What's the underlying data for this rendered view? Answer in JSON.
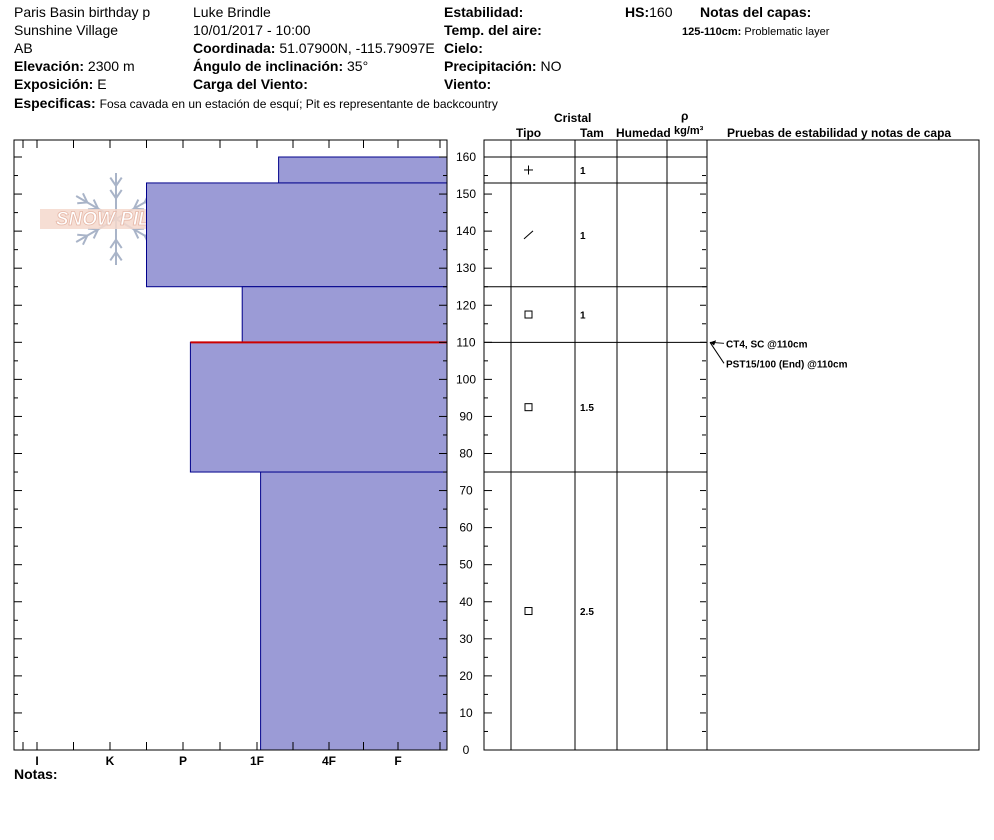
{
  "header": {
    "location": "Paris Basin birthday p",
    "area": "Sunshine Village",
    "province": "AB",
    "elevation_label": "Elevación:",
    "elevation_value": "2300 m",
    "aspect_label": "Exposición:",
    "aspect_value": "E",
    "specifics_label": "Especificas:",
    "specifics_value": "Fosa cavada en un estación de esquí; Pit es representante de backcountry",
    "observer": "Luke Brindle",
    "datetime": "10/01/2017 - 10:00",
    "coord_label": "Coordinada:",
    "coord_value": "51.07900N, -115.79097E",
    "slope_label": "Ángulo de inclinación:",
    "slope_value": "35°",
    "wind_load_label": "Carga del Viento:",
    "stability_label": "Estabilidad:",
    "air_temp_label": "Temp. del aire:",
    "sky_label": "Cielo:",
    "precip_label": "Precipitación:",
    "precip_value": "NO",
    "wind_label": "Viento:",
    "hs_label": "HS:",
    "hs_value": "160",
    "layer_notes_label": "Notas del capas:",
    "layer_note_range": "125-110cm:",
    "layer_note_text": "Problematic layer"
  },
  "logo": {
    "text": "SNOW PILOT"
  },
  "columns": {
    "crystal": "Cristal",
    "type": "Tipo",
    "size": "Tam",
    "moisture": "Humedad",
    "rho": "ρ",
    "density_unit": "kg/m³",
    "stability_tests": "Pruebas de estabilidad y notas de capa"
  },
  "notes_label": "Notas:",
  "chart_data": {
    "type": "bar",
    "orientation": "horizontal",
    "description_axis": "hardness",
    "x_categories": [
      "I",
      "K",
      "P",
      "1F",
      "4F",
      "F"
    ],
    "y_axis": {
      "min": 0,
      "max": 160,
      "major_step": 10,
      "unit": "cm"
    },
    "hs": 160,
    "layers": [
      {
        "top": 160,
        "bottom": 153,
        "hardness": 4.3,
        "grain": "+",
        "size": "1"
      },
      {
        "top": 153,
        "bottom": 125,
        "hardness": 2.5,
        "grain": "/",
        "size": "1"
      },
      {
        "top": 125,
        "bottom": 110,
        "hardness": 3.8,
        "grain": "□",
        "size": "1"
      },
      {
        "top": 110,
        "bottom": 75,
        "hardness": 3.1,
        "grain": "□",
        "size": "1.5"
      },
      {
        "top": 75,
        "bottom": 0,
        "hardness": 4.05,
        "grain": "□",
        "size": "2.5"
      }
    ],
    "weak_layer": {
      "depth": 110
    },
    "tests": [
      {
        "depth": 110,
        "text": "CT4, SC @110cm"
      },
      {
        "depth": 110,
        "text": "PST15/100 (End) @110cm"
      }
    ],
    "colors": {
      "fill": "#9b9bd6",
      "stroke": "#00008b",
      "weak_layer": "#cc0000"
    }
  }
}
